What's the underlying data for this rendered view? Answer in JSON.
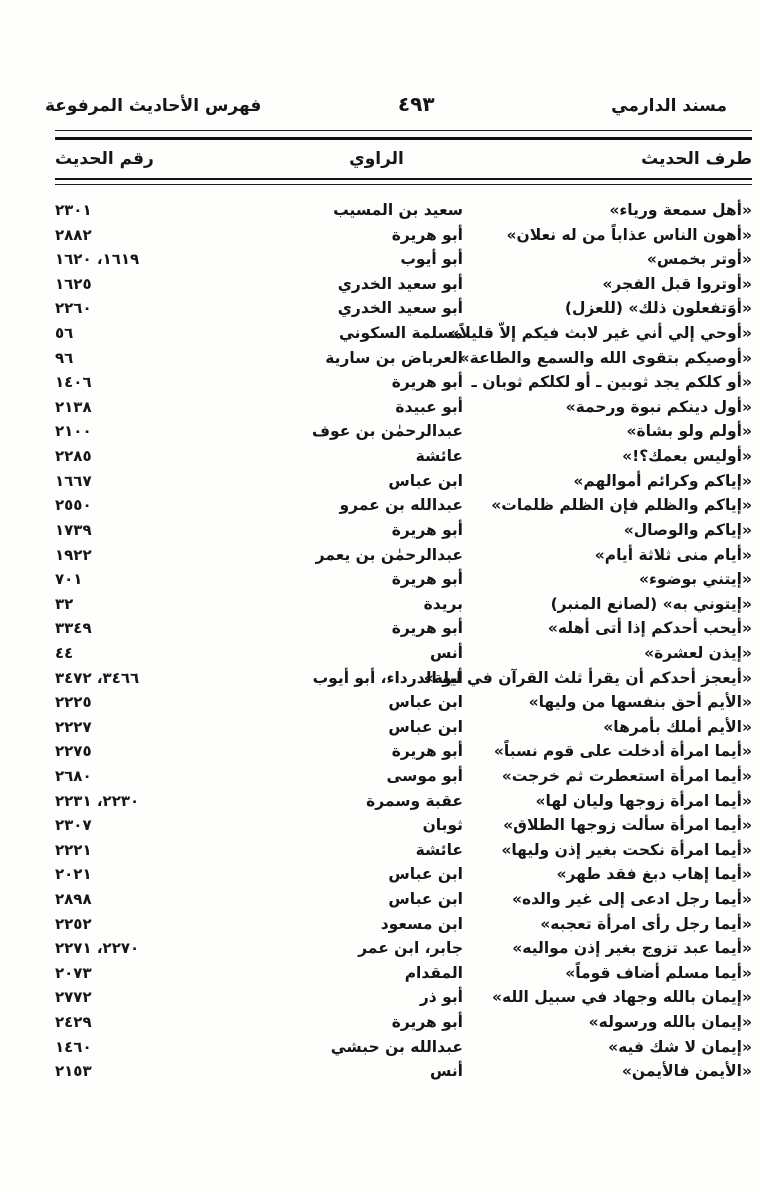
{
  "colors": {
    "ink": "#161616",
    "paper": "#fefefd"
  },
  "header": {
    "right": "مسند الدارمي",
    "page_number": "٤٩٣",
    "left": "فهرس الأحاديث المرفوعة"
  },
  "table": {
    "columns": [
      "طرف الحديث",
      "الراوي",
      "رقم الحديث"
    ],
    "rows": [
      {
        "matn": "«أهل سمعة ورياء»",
        "narrator": "سعيد بن المسيب",
        "number": "٢٣٠١"
      },
      {
        "matn": "«أهون الناس عذاباً من له نعلان»",
        "narrator": "أبو هريرة",
        "number": "٢٨٨٢"
      },
      {
        "matn": "«أوتر بخمس»",
        "narrator": "أبو أيوب",
        "number": "١٦١٩، ١٦٢٠"
      },
      {
        "matn": "«أوتروا قبل الفجر»",
        "narrator": "أبو سعيد الخدري",
        "number": "١٦٢٥"
      },
      {
        "matn": "«أوَتفعلون ذلك» (للعزل)",
        "narrator": "أبو سعيد الخدري",
        "number": "٢٢٦٠"
      },
      {
        "matn": "«أوحي إلي أني غير لابث فيكم إلاّ قليلاً»",
        "narrator": "مسلمة السكوني",
        "number": "٥٦"
      },
      {
        "matn": "«أوصيكم بتقوى الله والسمع والطاعة»",
        "narrator": "العرباض بن سارية",
        "number": "٩٦"
      },
      {
        "matn": "«أو كلكم يجد ثوبين ـ أو لكلكم ثوبان ـ",
        "narrator": "أبو هريرة",
        "number": "١٤٠٦"
      },
      {
        "matn": "«أول دينكم نبوة ورحمة»",
        "narrator": "أبو عبيدة",
        "number": "٢١٣٨"
      },
      {
        "matn": "«أولم ولو بشاة»",
        "narrator": "عبدالرحمٰن بن عوف",
        "number": "٢١٠٠"
      },
      {
        "matn": "«أوليس بعمك؟!»",
        "narrator": "عائشة",
        "number": "٢٢٨٥"
      },
      {
        "matn": "«إياكم وكرائم أموالهم»",
        "narrator": "ابن عباس",
        "number": "١٦٦٧"
      },
      {
        "matn": "«إياكم والظلم فإن الظلم ظلمات»",
        "narrator": "عبدالله بن عمرو",
        "number": "٢٥٥٠"
      },
      {
        "matn": "«إياكم والوصال»",
        "narrator": "أبو هريرة",
        "number": "١٧٣٩"
      },
      {
        "matn": "«أيام منى ثلاثة أيام»",
        "narrator": "عبدالرحمٰن بن يعمر",
        "number": "١٩٢٢"
      },
      {
        "matn": "«إيتني بوضوء»",
        "narrator": "أبو هريرة",
        "number": "٧٠١"
      },
      {
        "matn": "«إيتوني به» (لصانع المنبر)",
        "narrator": "بريدة",
        "number": "٣٢"
      },
      {
        "matn": "«أيحب أحدكم إذا أتى أهله»",
        "narrator": "أبو هريرة",
        "number": "٣٣٤٩"
      },
      {
        "matn": "«إيذن لعشرة»",
        "narrator": "أنس",
        "number": "٤٤"
      },
      {
        "matn": "«أيعجز أحدكم أن يقرأ ثلث القرآن في ليلة»",
        "narrator": "أبو الدرداء، أبو أيوب",
        "number": "٣٤٦٦، ٣٤٧٢"
      },
      {
        "matn": "«الأيم أحق بنفسها من وليها»",
        "narrator": "ابن عباس",
        "number": "٢٢٢٥"
      },
      {
        "matn": "«الأيم أملك بأمرها»",
        "narrator": "ابن عباس",
        "number": "٢٢٢٧"
      },
      {
        "matn": "«أيما امرأة أدخلت على قوم نسباً»",
        "narrator": "أبو هريرة",
        "number": "٢٢٧٥"
      },
      {
        "matn": "«أيما امرأة استعطرت ثم خرجت»",
        "narrator": "أبو موسى",
        "number": "٢٦٨٠"
      },
      {
        "matn": "«أيما امرأة زوجها وليان لها»",
        "narrator": "عقبة وسمرة",
        "number": "٢٢٣٠، ٢٢٣١"
      },
      {
        "matn": "«أيما امرأة سألت زوجها الطلاق»",
        "narrator": "ثوبان",
        "number": "٢٣٠٧"
      },
      {
        "matn": "«أيما امرأة نكحت بغير إذن وليها»",
        "narrator": "عائشة",
        "number": "٢٢٢١"
      },
      {
        "matn": "«أيما إهاب دبغ فقد طهر»",
        "narrator": "ابن عباس",
        "number": "٢٠٢١"
      },
      {
        "matn": "«أيما رجل ادعى إلى غير والده»",
        "narrator": "ابن عباس",
        "number": "٢٨٩٨"
      },
      {
        "matn": "«أيما رجل رأى امرأة تعجبه»",
        "narrator": "ابن مسعود",
        "number": "٢٢٥٢"
      },
      {
        "matn": "«أيما عبد تزوج بغير إذن مواليه»",
        "narrator": "جابر، ابن عمر",
        "number": "٢٢٧٠، ٢٢٧١"
      },
      {
        "matn": "«أيما مسلم أضاف قوماً»",
        "narrator": "المقدام",
        "number": "٢٠٧٣"
      },
      {
        "matn": "«إيمان بالله وجهاد في سبيل الله»",
        "narrator": "أبو ذر",
        "number": "٢٧٧٢"
      },
      {
        "matn": "«إيمان بالله ورسوله»",
        "narrator": "أبو هريرة",
        "number": "٢٤٢٩"
      },
      {
        "matn": "«إيمان لا شك فيه»",
        "narrator": "عبدالله بن حبشي",
        "number": "١٤٦٠"
      },
      {
        "matn": "«الأيمن فالأيمن»",
        "narrator": "أنس",
        "number": "٢١٥٣"
      }
    ]
  }
}
